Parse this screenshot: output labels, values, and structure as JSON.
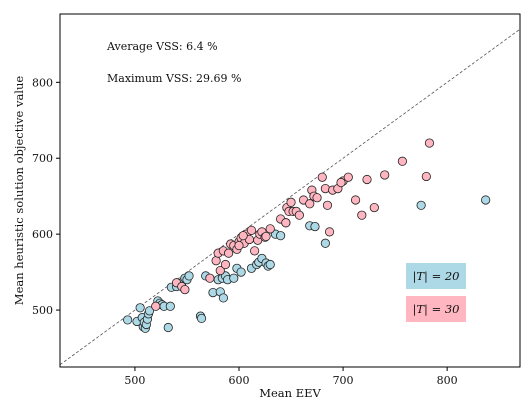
{
  "chart_data": {
    "type": "scatter",
    "xlabel": "Mean EEV",
    "ylabel": "Mean heuristic solution objective value",
    "xlim": [
      428,
      870
    ],
    "ylim": [
      425,
      890
    ],
    "xticks": [
      500,
      600,
      700,
      800
    ],
    "yticks": [
      500,
      600,
      700,
      800
    ],
    "grid": false,
    "reference_line": "y = x",
    "legend_placement": "lower-right",
    "annotations": [
      {
        "text": "Average VSS: 6.4 %"
      },
      {
        "text": "Maximum VSS: 29.69 %"
      }
    ],
    "series": [
      {
        "name": "|T| = 20",
        "color": "#add8e6",
        "points": [
          [
            493,
            487
          ],
          [
            502,
            485
          ],
          [
            505,
            503
          ],
          [
            507,
            490
          ],
          [
            508,
            478
          ],
          [
            509,
            484
          ],
          [
            510,
            476
          ],
          [
            511,
            481
          ],
          [
            512,
            488
          ],
          [
            513,
            495
          ],
          [
            514,
            499
          ],
          [
            522,
            512
          ],
          [
            524,
            509
          ],
          [
            526,
            507
          ],
          [
            528,
            505
          ],
          [
            532,
            477
          ],
          [
            534,
            505
          ],
          [
            535,
            530
          ],
          [
            540,
            531
          ],
          [
            545,
            536
          ],
          [
            548,
            542
          ],
          [
            550,
            540
          ],
          [
            552,
            545
          ],
          [
            563,
            492
          ],
          [
            564,
            489
          ],
          [
            568,
            545
          ],
          [
            575,
            523
          ],
          [
            580,
            540
          ],
          [
            582,
            524
          ],
          [
            584,
            542
          ],
          [
            585,
            516
          ],
          [
            587,
            545
          ],
          [
            589,
            540
          ],
          [
            595,
            542
          ],
          [
            598,
            555
          ],
          [
            602,
            550
          ],
          [
            612,
            555
          ],
          [
            617,
            560
          ],
          [
            619,
            563
          ],
          [
            622,
            568
          ],
          [
            626,
            562
          ],
          [
            628,
            558
          ],
          [
            630,
            560
          ],
          [
            635,
            600
          ],
          [
            640,
            598
          ],
          [
            645,
            615
          ],
          [
            668,
            611
          ],
          [
            673,
            610
          ],
          [
            683,
            588
          ],
          [
            775,
            638
          ],
          [
            837,
            645
          ]
        ]
      },
      {
        "name": "|T| = 30",
        "color": "#ffb6c1",
        "points": [
          [
            520,
            505
          ],
          [
            540,
            536
          ],
          [
            545,
            531
          ],
          [
            548,
            527
          ],
          [
            572,
            542
          ],
          [
            578,
            565
          ],
          [
            580,
            575
          ],
          [
            582,
            552
          ],
          [
            585,
            578
          ],
          [
            587,
            560
          ],
          [
            590,
            575
          ],
          [
            592,
            587
          ],
          [
            595,
            585
          ],
          [
            598,
            580
          ],
          [
            600,
            590
          ],
          [
            602,
            595
          ],
          [
            605,
            588
          ],
          [
            607,
            600
          ],
          [
            610,
            593
          ],
          [
            612,
            605
          ],
          [
            615,
            578
          ],
          [
            618,
            592
          ],
          [
            620,
            600
          ],
          [
            622,
            603
          ],
          [
            625,
            596
          ],
          [
            630,
            607
          ],
          [
            640,
            620
          ],
          [
            645,
            615
          ],
          [
            646,
            635
          ],
          [
            648,
            630
          ],
          [
            650,
            642
          ],
          [
            652,
            630
          ],
          [
            655,
            630
          ],
          [
            658,
            625
          ],
          [
            662,
            645
          ],
          [
            668,
            640
          ],
          [
            670,
            658
          ],
          [
            672,
            650
          ],
          [
            675,
            648
          ],
          [
            683,
            660
          ],
          [
            685,
            638
          ],
          [
            690,
            658
          ],
          [
            695,
            660
          ],
          [
            700,
            670
          ],
          [
            705,
            675
          ],
          [
            712,
            645
          ],
          [
            718,
            625
          ],
          [
            723,
            672
          ],
          [
            730,
            635
          ],
          [
            740,
            678
          ],
          [
            757,
            696
          ],
          [
            780,
            676
          ],
          [
            783,
            720
          ],
          [
            680,
            675
          ],
          [
            687,
            603
          ],
          [
            698,
            668
          ],
          [
            626,
            597
          ],
          [
            604,
            598
          ],
          [
            600,
            585
          ]
        ]
      }
    ]
  }
}
